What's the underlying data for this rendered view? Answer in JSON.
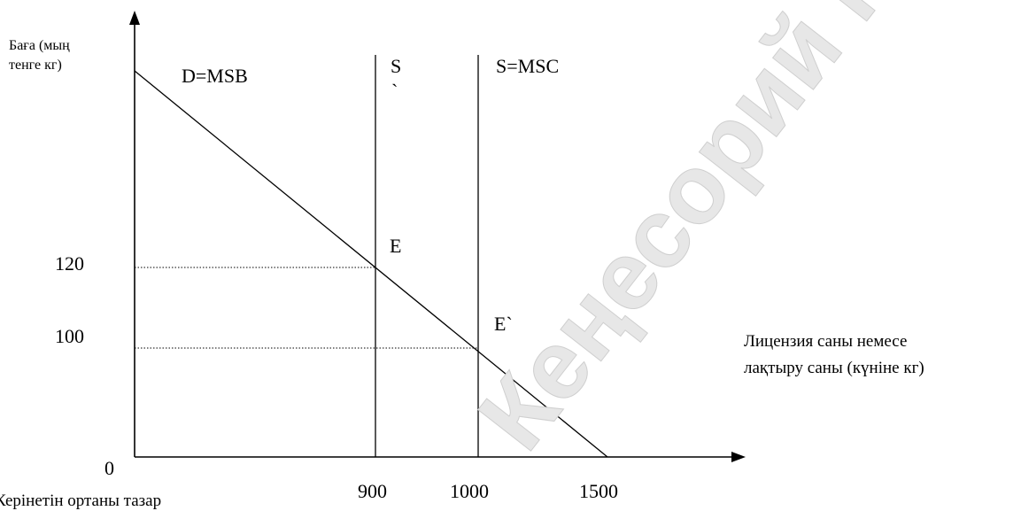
{
  "y_axis_label": [
    "Баға (мың",
    "тенге кг)"
  ],
  "x_axis_label": [
    "Лицензия саны немесе",
    "лақтыру саны (күніне кг)"
  ],
  "origin_label": "0",
  "curves": {
    "demand": "D=MSB",
    "supply_prime": "S",
    "supply_prime_mark": "`",
    "supply": "S=MSC"
  },
  "points": {
    "e": "E",
    "e_prime": "E`"
  },
  "y_ticks": [
    "120",
    "100"
  ],
  "x_ticks": [
    "900",
    "1000",
    "1500"
  ],
  "bottom_text": "Керінетін ортаны тазар",
  "watermark": "Кеңесорий карта",
  "chart_data": {
    "type": "line",
    "ylabel": "Баға (мың тенге кг)",
    "xlabel": "Лицензия саны немесе лақтыру саны (күніне кг)",
    "series": [
      {
        "name": "D=MSB",
        "x": [
          0,
          900,
          1000,
          1500
        ],
        "y": [
          150,
          120,
          100,
          0
        ]
      },
      {
        "name": "S",
        "x": [
          900,
          900
        ],
        "y": [
          0,
          150
        ]
      },
      {
        "name": "S=MSC",
        "x": [
          1000,
          1000
        ],
        "y": [
          0,
          150
        ]
      }
    ],
    "points": [
      {
        "name": "E",
        "x": 900,
        "y": 120
      },
      {
        "name": "E`",
        "x": 1000,
        "y": 100
      }
    ]
  }
}
